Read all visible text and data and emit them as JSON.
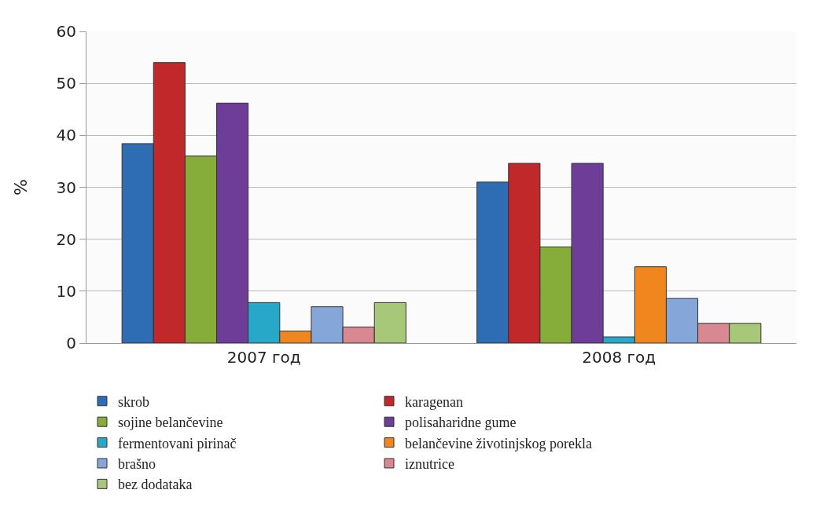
{
  "chart_data": {
    "type": "bar",
    "ylabel": "%",
    "categories": [
      "2007 год",
      "2008 год"
    ],
    "series": [
      {
        "name": "skrob",
        "color": "#2e6db4",
        "values": [
          38.4,
          31
        ]
      },
      {
        "name": "karagenan",
        "color": "#c0282a",
        "values": [
          54,
          34.6
        ]
      },
      {
        "name": "sojine belančevine",
        "color": "#86ad3a",
        "values": [
          36,
          18.5
        ]
      },
      {
        "name": "polisaharidne gume",
        "color": "#6d3d98",
        "values": [
          46.2,
          34.6
        ]
      },
      {
        "name": "fermentovani pirinač",
        "color": "#28a8c8",
        "values": [
          7.8,
          1.2
        ]
      },
      {
        "name": "belančevine životinjskog porekla",
        "color": "#f0861e",
        "values": [
          2.3,
          14.7
        ]
      },
      {
        "name": "brašno",
        "color": "#84a6d8",
        "values": [
          7,
          8.6
        ]
      },
      {
        "name": "iznutrice",
        "color": "#d88890",
        "values": [
          3.1,
          3.8
        ]
      },
      {
        "name": "bez dodataka",
        "color": "#a6c878",
        "values": [
          7.8,
          3.8
        ]
      }
    ],
    "ylim": [
      0,
      60
    ],
    "yticks": [
      0,
      10,
      20,
      30,
      40,
      50,
      60
    ],
    "grid": "y",
    "legend": "bottom"
  }
}
